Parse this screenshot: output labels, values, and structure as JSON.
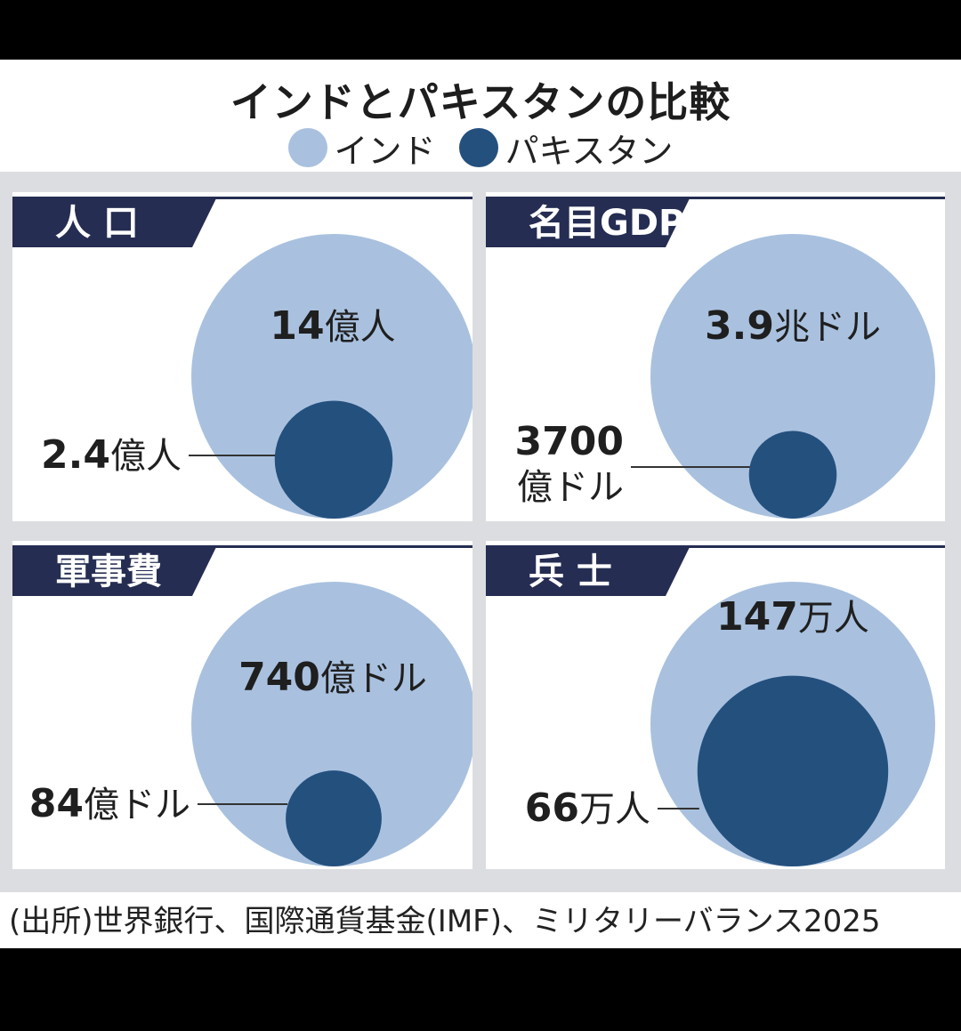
{
  "title": "インドとパキスタンの比較",
  "legend": [
    {
      "label": "インド",
      "color": "#a9c1df"
    },
    {
      "label": "パキスタン",
      "color": "#24507e"
    }
  ],
  "colors": {
    "header": "#252d52",
    "india": "#a9c1df",
    "pakistan": "#24507e",
    "panel_bg": "#ffffff",
    "divider": "#dcdde0"
  },
  "source": "(出所)世界銀行、国際通貨基金(IMF)、ミリタリーバランス2025",
  "chart_data": [
    {
      "type": "bubble",
      "title": "人 口",
      "series": [
        {
          "name": "インド",
          "value": 14,
          "unit": "億人",
          "label_number": "14",
          "label_unit": "億人"
        },
        {
          "name": "パキスタン",
          "value": 2.4,
          "unit": "億人",
          "label_number": "2.4",
          "label_unit": "億人"
        }
      ]
    },
    {
      "type": "bubble",
      "title": "名目GDP",
      "series": [
        {
          "name": "インド",
          "value": 3.9,
          "unit": "兆ドル",
          "label_number": "3.9",
          "label_unit": "兆ドル"
        },
        {
          "name": "パキスタン",
          "value": 0.37,
          "unit": "兆ドル",
          "label_number": "3700",
          "label_unit": "億ドル"
        }
      ]
    },
    {
      "type": "bubble",
      "title": "軍事費",
      "series": [
        {
          "name": "インド",
          "value": 740,
          "unit": "億ドル",
          "label_number": "740",
          "label_unit": "億ドル"
        },
        {
          "name": "パキスタン",
          "value": 84,
          "unit": "億ドル",
          "label_number": "84",
          "label_unit": "億ドル"
        }
      ]
    },
    {
      "type": "bubble",
      "title": "兵 士",
      "series": [
        {
          "name": "インド",
          "value": 147,
          "unit": "万人",
          "label_number": "147",
          "label_unit": "万人"
        },
        {
          "name": "パキスタン",
          "value": 66,
          "unit": "万人",
          "label_number": "66",
          "label_unit": "万人"
        }
      ]
    }
  ]
}
